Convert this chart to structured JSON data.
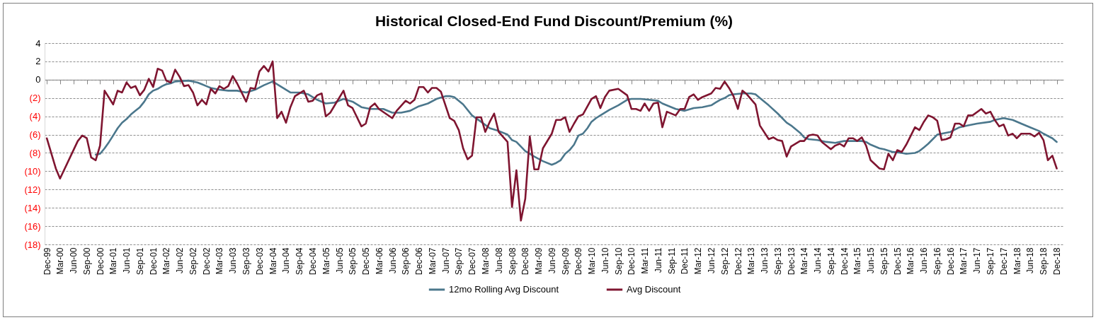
{
  "chart_data": {
    "type": "line",
    "title": "Historical Closed-End Fund Discount/Premium (%)",
    "xlim": [
      "1999-11-16",
      "2019-01-16"
    ],
    "xticks": [
      {
        "value": "1999-12",
        "label": "Dec-99"
      },
      {
        "value": "2000-03",
        "label": "Mar-00"
      },
      {
        "value": "2000-06",
        "label": "Jun-00"
      },
      {
        "value": "2000-09",
        "label": "Sep-00"
      },
      {
        "value": "2000-12",
        "label": "Dec-00"
      },
      {
        "value": "2001-03",
        "label": "Mar-01"
      },
      {
        "value": "2001-06",
        "label": "Jun-01"
      },
      {
        "value": "2001-09",
        "label": "Sep-01"
      },
      {
        "value": "2001-12",
        "label": "Dec-01"
      },
      {
        "value": "2002-03",
        "label": "Mar-02"
      },
      {
        "value": "2002-06",
        "label": "Jun-02"
      },
      {
        "value": "2002-09",
        "label": "Sep-02"
      },
      {
        "value": "2002-12",
        "label": "Dec-02"
      },
      {
        "value": "2003-03",
        "label": "Mar-03"
      },
      {
        "value": "2003-06",
        "label": "Jun-03"
      },
      {
        "value": "2003-09",
        "label": "Sep-03"
      },
      {
        "value": "2003-12",
        "label": "Dec-03"
      },
      {
        "value": "2004-03",
        "label": "Mar-04"
      },
      {
        "value": "2004-06",
        "label": "Jun-04"
      },
      {
        "value": "2004-09",
        "label": "Sep-04"
      },
      {
        "value": "2004-12",
        "label": "Dec-04"
      },
      {
        "value": "2005-03",
        "label": "Mar-05"
      },
      {
        "value": "2005-06",
        "label": "Jun-05"
      },
      {
        "value": "2005-09",
        "label": "Sep-05"
      },
      {
        "value": "2005-12",
        "label": "Dec-05"
      },
      {
        "value": "2006-03",
        "label": "Mar-06"
      },
      {
        "value": "2006-06",
        "label": "Jun-06"
      },
      {
        "value": "2006-09",
        "label": "Sep-06"
      },
      {
        "value": "2006-12",
        "label": "Dec-06"
      },
      {
        "value": "2007-03",
        "label": "Mar-07"
      },
      {
        "value": "2007-06",
        "label": "Jun-07"
      },
      {
        "value": "2007-09",
        "label": "Sep-07"
      },
      {
        "value": "2007-12",
        "label": "Dec-07"
      },
      {
        "value": "2008-03",
        "label": "Mar-08"
      },
      {
        "value": "2008-06",
        "label": "Jun-08"
      },
      {
        "value": "2008-09",
        "label": "Sep-08"
      },
      {
        "value": "2008-12",
        "label": "Dec-08"
      },
      {
        "value": "2009-03",
        "label": "Mar-09"
      },
      {
        "value": "2009-06",
        "label": "Jun-09"
      },
      {
        "value": "2009-09",
        "label": "Sep-09"
      },
      {
        "value": "2009-12",
        "label": "Dec-09"
      },
      {
        "value": "2010-03",
        "label": "Mar-10"
      },
      {
        "value": "2010-06",
        "label": "Jun-10"
      },
      {
        "value": "2010-09",
        "label": "Sep-10"
      },
      {
        "value": "2010-12",
        "label": "Dec-10"
      },
      {
        "value": "2011-03",
        "label": "Mar-11"
      },
      {
        "value": "2011-06",
        "label": "Jun-11"
      },
      {
        "value": "2011-09",
        "label": "Sep-11"
      },
      {
        "value": "2011-12",
        "label": "Dec-11"
      },
      {
        "value": "2012-03",
        "label": "Mar-12"
      },
      {
        "value": "2012-06",
        "label": "Jun-12"
      },
      {
        "value": "2012-09",
        "label": "Sep-12"
      },
      {
        "value": "2012-12",
        "label": "Dec-12"
      },
      {
        "value": "2013-03",
        "label": "Mar-13"
      },
      {
        "value": "2013-06",
        "label": "Jun-13"
      },
      {
        "value": "2013-09",
        "label": "Sep-13"
      },
      {
        "value": "2013-12",
        "label": "Dec-13"
      },
      {
        "value": "2014-03",
        "label": "Mar-14"
      },
      {
        "value": "2014-06",
        "label": "Jun-14"
      },
      {
        "value": "2014-09",
        "label": "Sep-14"
      },
      {
        "value": "2014-12",
        "label": "Dec-14"
      },
      {
        "value": "2015-03",
        "label": "Mar-15"
      },
      {
        "value": "2015-06",
        "label": "Jun-15"
      },
      {
        "value": "2015-09",
        "label": "Sep-15"
      },
      {
        "value": "2015-12",
        "label": "Dec-15"
      },
      {
        "value": "2016-03",
        "label": "Mar-16"
      },
      {
        "value": "2016-06",
        "label": "Jun-16"
      },
      {
        "value": "2016-09",
        "label": "Sep-16"
      },
      {
        "value": "2016-12",
        "label": "Dec-16"
      },
      {
        "value": "2017-03",
        "label": "Mar-17"
      },
      {
        "value": "2017-06",
        "label": "Jun-17"
      },
      {
        "value": "2017-09",
        "label": "Sep-17"
      },
      {
        "value": "2017-12",
        "label": "Dec-17"
      },
      {
        "value": "2018-03",
        "label": "Mar-18"
      },
      {
        "value": "2018-06",
        "label": "Jun-18"
      },
      {
        "value": "2018-09",
        "label": "Sep-18"
      },
      {
        "value": "2018-12",
        "label": "Dec-18"
      }
    ],
    "ylim": [
      -18,
      4
    ],
    "yticks": [
      {
        "value": -18,
        "label": "(18)"
      },
      {
        "value": -16,
        "label": "(16)"
      },
      {
        "value": -14,
        "label": "(14)"
      },
      {
        "value": -12,
        "label": "(12)"
      },
      {
        "value": -10,
        "label": "(10)"
      },
      {
        "value": -8,
        "label": "(8)"
      },
      {
        "value": -6,
        "label": "(6)"
      },
      {
        "value": -4,
        "label": "(4)"
      },
      {
        "value": -2,
        "label": "(2)"
      },
      0,
      2,
      4
    ],
    "grid": "y",
    "legend": "bottom",
    "series": [
      {
        "name": "12mo Rolling Avg Discount",
        "color": "#4b778c",
        "x": [
          "2000-11",
          "2000-12",
          "2001-01",
          "2001-02",
          "2001-03",
          "2001-04",
          "2001-05",
          "2001-06",
          "2001-07",
          "2001-08",
          "2001-09",
          "2001-10",
          "2001-11",
          "2001-12",
          "2002-01",
          "2002-02",
          "2002-03",
          "2002-04",
          "2002-05",
          "2002-08",
          "2002-09",
          "2002-10",
          "2002-11",
          "2002-12",
          "2003-01",
          "2003-03",
          "2003-05",
          "2003-07",
          "2003-09",
          "2003-11",
          "2004-01",
          "2004-03",
          "2004-05",
          "2004-07",
          "2004-09",
          "2004-11",
          "2005-01",
          "2005-03",
          "2005-05",
          "2005-07",
          "2005-09",
          "2005-11",
          "2006-01",
          "2006-04",
          "2006-06",
          "2006-08",
          "2006-10",
          "2006-12",
          "2007-02",
          "2007-04",
          "2007-06",
          "2007-07",
          "2007-08",
          "2007-10",
          "2007-12",
          "2008-02",
          "2008-04",
          "2008-06",
          "2008-08",
          "2008-09",
          "2008-10",
          "2008-12",
          "2009-02",
          "2009-04",
          "2009-06",
          "2009-07",
          "2009-08",
          "2009-09",
          "2009-10",
          "2009-11",
          "2009-12",
          "2010-01",
          "2010-02",
          "2010-03",
          "2010-04",
          "2010-05",
          "2010-07",
          "2010-09",
          "2010-11",
          "2010-12",
          "2011-02",
          "2011-04",
          "2011-06",
          "2011-07",
          "2011-09",
          "2011-10",
          "2011-12",
          "2012-02",
          "2012-04",
          "2012-06",
          "2012-07",
          "2012-08",
          "2012-09",
          "2012-10",
          "2012-11",
          "2013-01",
          "2013-03",
          "2013-04",
          "2013-05",
          "2013-07",
          "2013-09",
          "2013-11",
          "2013-12",
          "2014-02",
          "2014-03",
          "2014-04",
          "2014-06",
          "2014-08",
          "2014-10",
          "2014-12",
          "2015-02",
          "2015-04",
          "2015-05",
          "2015-06",
          "2015-08",
          "2015-09",
          "2015-11",
          "2016-01",
          "2016-02",
          "2016-04",
          "2016-05",
          "2016-06",
          "2016-07",
          "2016-09",
          "2016-10",
          "2016-12",
          "2017-02",
          "2017-04",
          "2017-06",
          "2017-09",
          "2017-10",
          "2017-12",
          "2018-02",
          "2018-04",
          "2018-06",
          "2018-08",
          "2018-09",
          "2018-11",
          "2018-12"
        ],
        "values": [
          -8.2,
          -8.1,
          -7.5,
          -6.8,
          -6.1,
          -5.3,
          -4.7,
          -4.3,
          -3.8,
          -3.4,
          -3.0,
          -2.4,
          -1.6,
          -1.2,
          -1.0,
          -0.7,
          -0.5,
          -0.4,
          -0.2,
          -0.1,
          -0.2,
          -0.3,
          -0.5,
          -0.7,
          -0.9,
          -1.1,
          -1.2,
          -1.2,
          -1.4,
          -1.1,
          -0.6,
          -0.2,
          -0.8,
          -1.4,
          -1.4,
          -1.6,
          -2.2,
          -2.6,
          -2.5,
          -2.1,
          -2.4,
          -3.0,
          -3.2,
          -3.2,
          -3.6,
          -3.6,
          -3.4,
          -2.9,
          -2.6,
          -2.1,
          -1.8,
          -1.8,
          -1.9,
          -2.7,
          -3.9,
          -4.6,
          -5.3,
          -5.6,
          -6.0,
          -6.6,
          -6.8,
          -7.8,
          -8.4,
          -8.9,
          -9.3,
          -9.1,
          -8.8,
          -8.1,
          -7.7,
          -7.1,
          -6.1,
          -5.9,
          -5.3,
          -4.6,
          -4.2,
          -3.9,
          -3.3,
          -2.8,
          -2.2,
          -2.1,
          -2.1,
          -2.2,
          -2.3,
          -2.6,
          -3.0,
          -3.2,
          -3.4,
          -3.1,
          -3.0,
          -2.8,
          -2.5,
          -2.2,
          -2.0,
          -1.7,
          -1.6,
          -1.5,
          -1.5,
          -1.6,
          -2.0,
          -2.8,
          -3.7,
          -4.7,
          -5.0,
          -5.8,
          -6.3,
          -6.5,
          -6.6,
          -6.8,
          -6.9,
          -6.7,
          -6.7,
          -6.7,
          -6.8,
          -7.1,
          -7.5,
          -7.6,
          -7.9,
          -8.0,
          -8.1,
          -8.0,
          -7.8,
          -7.4,
          -7.0,
          -6.0,
          -5.9,
          -5.7,
          -5.2,
          -5.0,
          -4.8,
          -4.6,
          -4.4,
          -4.2,
          -4.4,
          -4.8,
          -5.2,
          -5.6,
          -5.9,
          -6.4,
          -6.8
        ]
      },
      {
        "name": "Avg Discount",
        "color": "#7f1530",
        "x": [
          "1999-12",
          "2000-02",
          "2000-03",
          "2000-07",
          "2000-08",
          "2000-09",
          "2000-10",
          "2000-11",
          "2000-12",
          "2001-01",
          "2001-03",
          "2001-04",
          "2001-05",
          "2001-06",
          "2001-07",
          "2001-08",
          "2001-09",
          "2001-10",
          "2001-11",
          "2001-12",
          "2002-01",
          "2002-02",
          "2002-03",
          "2002-04",
          "2002-05",
          "2002-06",
          "2002-07",
          "2002-08",
          "2002-09",
          "2002-10",
          "2002-11",
          "2002-12",
          "2003-01",
          "2003-02",
          "2003-03",
          "2003-04",
          "2003-05",
          "2003-06",
          "2003-07",
          "2003-09",
          "2003-10",
          "2003-11",
          "2003-12",
          "2004-01",
          "2004-02",
          "2004-03",
          "2004-04",
          "2004-05",
          "2004-06",
          "2004-07",
          "2004-08",
          "2004-10",
          "2004-11",
          "2004-12",
          "2005-01",
          "2005-02",
          "2005-03",
          "2005-04",
          "2005-07",
          "2005-08",
          "2005-09",
          "2005-11",
          "2005-12",
          "2006-01",
          "2006-02",
          "2006-03",
          "2006-06",
          "2006-07",
          "2006-09",
          "2006-10",
          "2006-11",
          "2006-12",
          "2007-01",
          "2007-02",
          "2007-03",
          "2007-04",
          "2007-05",
          "2007-07",
          "2007-08",
          "2007-09",
          "2007-10",
          "2007-11",
          "2007-12",
          "2008-01",
          "2008-02",
          "2008-03",
          "2008-04",
          "2008-05",
          "2008-06",
          "2008-08",
          "2008-09",
          "2008-10",
          "2008-11",
          "2008-12",
          "2009-01",
          "2009-02",
          "2009-03",
          "2009-04",
          "2009-06",
          "2009-07",
          "2009-08",
          "2009-09",
          "2009-10",
          "2009-11",
          "2009-12",
          "2010-01",
          "2010-03",
          "2010-04",
          "2010-05",
          "2010-06",
          "2010-07",
          "2010-09",
          "2010-11",
          "2010-12",
          "2011-01",
          "2011-02",
          "2011-03",
          "2011-04",
          "2011-05",
          "2011-06",
          "2011-07",
          "2011-08",
          "2011-10",
          "2011-11",
          "2011-12",
          "2012-01",
          "2012-02",
          "2012-03",
          "2012-04",
          "2012-06",
          "2012-07",
          "2012-08",
          "2012-09",
          "2012-10",
          "2012-11",
          "2012-12",
          "2013-01",
          "2013-02",
          "2013-04",
          "2013-05",
          "2013-07",
          "2013-08",
          "2013-09",
          "2013-10",
          "2013-11",
          "2013-12",
          "2014-02",
          "2014-03",
          "2014-04",
          "2014-05",
          "2014-06",
          "2014-07",
          "2014-09",
          "2014-10",
          "2014-11",
          "2014-12",
          "2015-01",
          "2015-02",
          "2015-03",
          "2015-04",
          "2015-05",
          "2015-06",
          "2015-08",
          "2015-09",
          "2015-10",
          "2015-11",
          "2015-12",
          "2016-01",
          "2016-02",
          "2016-04",
          "2016-05",
          "2016-06",
          "2016-07",
          "2016-08",
          "2016-09",
          "2016-10",
          "2016-11",
          "2016-12",
          "2017-01",
          "2017-02",
          "2017-03",
          "2017-04",
          "2017-05",
          "2017-07",
          "2017-08",
          "2017-09",
          "2017-10",
          "2017-11",
          "2017-12",
          "2018-01",
          "2018-02",
          "2018-03",
          "2018-04",
          "2018-06",
          "2018-07",
          "2018-08",
          "2018-09",
          "2018-10",
          "2018-11",
          "2018-12"
        ],
        "values": [
          -6.4,
          -9.7,
          -10.8,
          -6.7,
          -6.1,
          -6.4,
          -8.5,
          -8.8,
          -7.2,
          -1.2,
          -2.7,
          -1.2,
          -1.4,
          -0.3,
          -0.9,
          -0.7,
          -1.7,
          -1.1,
          0.1,
          -0.8,
          1.2,
          1.0,
          -0.1,
          -0.3,
          1.1,
          0.3,
          -0.7,
          -0.6,
          -1.4,
          -2.8,
          -2.2,
          -2.7,
          -1.0,
          -1.5,
          -0.7,
          -1.0,
          -0.7,
          0.4,
          -0.4,
          -2.4,
          -0.9,
          -1.0,
          0.9,
          1.5,
          0.9,
          2.0,
          -4.2,
          -3.5,
          -4.7,
          -3.0,
          -1.8,
          -1.2,
          -2.4,
          -2.3,
          -1.7,
          -1.5,
          -4.0,
          -3.6,
          -1.2,
          -2.8,
          -3.1,
          -5.1,
          -4.8,
          -3.0,
          -2.6,
          -3.2,
          -4.2,
          -3.4,
          -2.3,
          -2.6,
          -2.2,
          -0.8,
          -0.8,
          -1.4,
          -0.9,
          -0.9,
          -1.3,
          -4.2,
          -4.5,
          -5.5,
          -7.5,
          -8.7,
          -8.3,
          -4.1,
          -4.1,
          -5.7,
          -4.6,
          -3.7,
          -5.7,
          -6.8,
          -13.9,
          -9.9,
          -15.4,
          -13.0,
          -6.2,
          -9.8,
          -9.8,
          -7.5,
          -5.9,
          -4.4,
          -4.4,
          -4.1,
          -5.7,
          -4.8,
          -4.0,
          -3.8,
          -2.1,
          -1.8,
          -3.1,
          -1.9,
          -1.2,
          -1.0,
          -1.7,
          -3.2,
          -3.2,
          -3.4,
          -2.6,
          -3.4,
          -2.6,
          -2.5,
          -5.2,
          -3.5,
          -3.9,
          -3.2,
          -3.2,
          -1.9,
          -1.6,
          -2.2,
          -1.9,
          -1.5,
          -0.9,
          -1.0,
          -0.2,
          -0.9,
          -1.8,
          -3.2,
          -1.2,
          -1.6,
          -2.7,
          -5.0,
          -6.5,
          -6.3,
          -6.6,
          -6.7,
          -8.4,
          -7.3,
          -6.7,
          -6.7,
          -6.1,
          -6.0,
          -6.1,
          -6.8,
          -7.6,
          -7.2,
          -7.0,
          -7.3,
          -6.4,
          -6.4,
          -6.7,
          -6.3,
          -7.2,
          -8.8,
          -9.7,
          -9.8,
          -8.1,
          -8.8,
          -7.7,
          -7.9,
          -7.1,
          -5.2,
          -5.5,
          -4.6,
          -3.9,
          -4.1,
          -4.5,
          -6.6,
          -6.5,
          -6.3,
          -4.8,
          -4.8,
          -5.1,
          -3.9,
          -3.9,
          -3.2,
          -3.7,
          -3.5,
          -4.4,
          -5.1,
          -4.9,
          -6.1,
          -5.9,
          -6.4,
          -5.9,
          -5.9,
          -6.2,
          -5.8,
          -6.6,
          -8.8,
          -8.3,
          -9.7
        ]
      }
    ]
  }
}
